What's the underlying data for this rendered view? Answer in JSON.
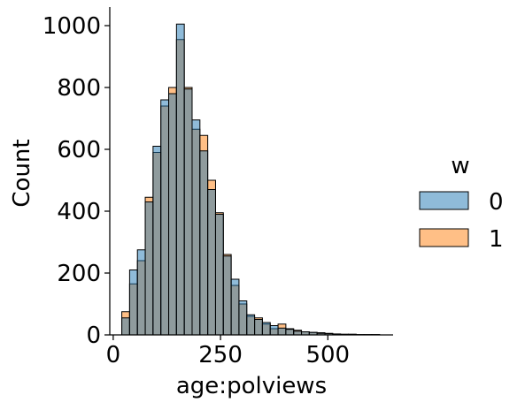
{
  "chart_data": {
    "type": "histogram",
    "title": "",
    "xlabel": "age:polviews",
    "ylabel": "Count",
    "xlim": [
      -8,
      652
    ],
    "ylim": [
      0,
      1060
    ],
    "x_ticks": [
      0,
      250,
      500
    ],
    "y_ticks": [
      0,
      200,
      400,
      600,
      800,
      1000
    ],
    "bins": {
      "start": 20,
      "width": 18.2,
      "count": 33
    },
    "legend": {
      "title": "w",
      "placement": "right"
    },
    "grid": false,
    "series": [
      {
        "name": "0",
        "color": "#1f77b4",
        "values": [
          55,
          210,
          275,
          430,
          610,
          760,
          780,
          1005,
          795,
          695,
          595,
          470,
          390,
          255,
          180,
          110,
          65,
          50,
          40,
          30,
          22,
          18,
          12,
          10,
          8,
          5,
          4,
          3,
          2,
          2,
          1,
          1,
          1
        ]
      },
      {
        "name": "1",
        "color": "#ff7f0e",
        "values": [
          75,
          165,
          240,
          445,
          590,
          740,
          800,
          955,
          800,
          665,
          645,
          500,
          395,
          260,
          160,
          100,
          60,
          55,
          35,
          20,
          35,
          20,
          15,
          10,
          8,
          7,
          5,
          3,
          2,
          2,
          1,
          1,
          1
        ]
      }
    ]
  }
}
